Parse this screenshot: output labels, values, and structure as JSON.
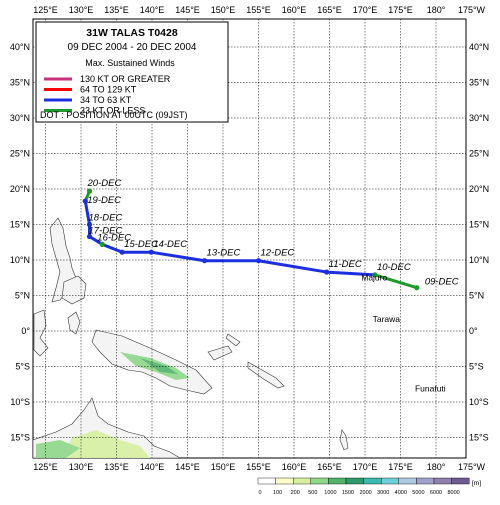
{
  "map": {
    "top_lon_labels": [
      "125°E",
      "130°E",
      "135°E",
      "140°E",
      "145°E",
      "150°E",
      "155°E",
      "160°E",
      "165°E",
      "170°E",
      "175°E",
      "180°",
      "175°W"
    ],
    "bottom_lon_labels": [
      "125°E",
      "130°E",
      "135°E",
      "140°E",
      "145°E",
      "150°E",
      "155°E",
      "160°E",
      "165°E",
      "170°E",
      "175°E",
      "180°",
      "175°W"
    ],
    "left_lat_labels": [
      "40°N",
      "35°N",
      "30°N",
      "25°N",
      "20°N",
      "15°N",
      "10°N",
      "5°N",
      "0°",
      "5°S",
      "10°S",
      "15°S"
    ],
    "right_lat_labels": [
      "40°N",
      "35°N",
      "30°N",
      "25°N",
      "20°N",
      "15°N",
      "10°N",
      "5°N",
      "0°",
      "5°S",
      "10°S",
      "15°S"
    ],
    "lon_values": [
      125,
      130,
      135,
      140,
      145,
      150,
      155,
      160,
      165,
      170,
      175,
      180,
      185
    ],
    "lat_values": [
      40,
      35,
      30,
      25,
      20,
      15,
      10,
      5,
      0,
      -5,
      -10,
      -15
    ],
    "colors": {
      "land": "#f4f4f4",
      "land_outline": "#333333",
      "track_130": "#c8327a",
      "track_64": "#ff0000",
      "track_34": "#1b2ee0",
      "track_33": "#1e9a2a"
    }
  },
  "legend": {
    "title": "31W  TALAS  T0428",
    "dates": "09 DEC 2004 - 20 DEC 2004",
    "heading": "Max. Sustained Winds",
    "items": [
      {
        "label": "130 KT OR GREATER",
        "color": "#c8327a"
      },
      {
        "label": "64 TO 129 KT",
        "color": "#ff0000"
      },
      {
        "label": "34 TO 63 KT",
        "color": "#1b2ee0"
      },
      {
        "label": "33 KT OR LESS",
        "color": "#1e9a2a"
      }
    ],
    "note": "DOT : POSITION AT 00UTC (09JST)"
  },
  "track": {
    "points": [
      {
        "label": "09-DEC",
        "lon": 177.3,
        "lat": 6.1,
        "intensity": "33"
      },
      {
        "label": "10-DEC",
        "lon": 171.4,
        "lat": 7.9,
        "intensity": "33"
      },
      {
        "label": "11-DEC",
        "lon": 164.6,
        "lat": 8.3,
        "intensity": "34"
      },
      {
        "label": "12-DEC",
        "lon": 155.0,
        "lat": 9.9,
        "intensity": "34"
      },
      {
        "label": "13-DEC",
        "lon": 147.4,
        "lat": 9.9,
        "intensity": "34"
      },
      {
        "label": "14-DEC",
        "lon": 139.9,
        "lat": 11.1,
        "intensity": "34"
      },
      {
        "label": "15-DEC",
        "lon": 135.8,
        "lat": 11.1,
        "intensity": "34"
      },
      {
        "label": "16-DEC",
        "lon": 133.0,
        "lat": 12.2,
        "intensity": "33"
      },
      {
        "label": "17-DEC",
        "lon": 131.2,
        "lat": 13.3,
        "intensity": "34"
      },
      {
        "label": "18-DEC",
        "lon": 131.2,
        "lat": 15.0,
        "intensity": "34"
      },
      {
        "label": "19-DEC",
        "lon": 130.6,
        "lat": 18.3,
        "intensity": "34"
      },
      {
        "label": "20-DEC",
        "lon": 131.2,
        "lat": 19.7,
        "intensity": "33"
      }
    ]
  },
  "places": [
    {
      "name": "Majuro",
      "lon": 171.3,
      "lat": 7.1
    },
    {
      "name": "Tarawa",
      "lon": 173.0,
      "lat": 1.3
    },
    {
      "name": "Funafuti",
      "lon": 179.2,
      "lat": -8.5
    }
  ],
  "scale": {
    "unit": "[m]",
    "labels": [
      "0",
      "100",
      "200",
      "500",
      "1000",
      "1500",
      "2000",
      "3000",
      "4000",
      "5000",
      "6000",
      "8000"
    ],
    "colors": [
      "#ffffff",
      "#fdfdc8",
      "#d7f0a0",
      "#8fd88a",
      "#4fb36b",
      "#2e9a6c",
      "#3bb8b0",
      "#6ed0d8",
      "#b0c8e0",
      "#a0a0c8",
      "#9080b0",
      "#705890"
    ]
  }
}
